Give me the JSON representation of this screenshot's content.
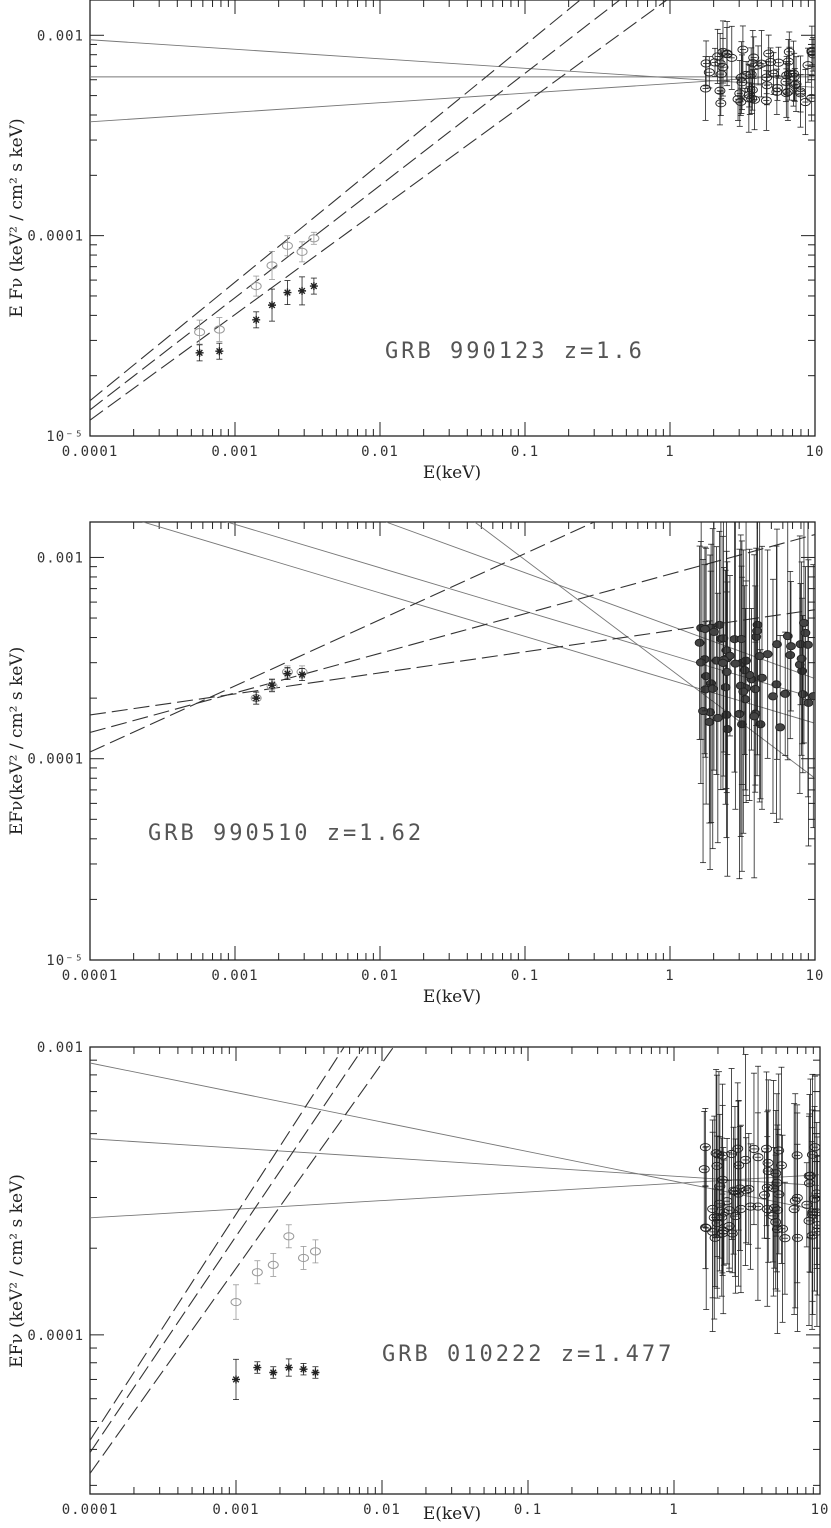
{
  "figure": {
    "panels": [
      {
        "annotation": "GRB 990123 z=1.6",
        "xlabel": "E(keV)",
        "ylabel": "E Fν (keV² / cm² s keV)"
      },
      {
        "annotation": "GRB 990510 z=1.62",
        "xlabel": "E(keV)",
        "ylabel": "EFν(keV² / cm² s keV)"
      },
      {
        "annotation": "GRB 010222 z=1.477",
        "xlabel": "E(keV)",
        "ylabel": "EFν (keV² / cm² s keV)"
      }
    ]
  },
  "chart_data": [
    {
      "type": "scatter",
      "title": "",
      "annotation": "GRB 990123 z=1.6",
      "xlabel": "E(keV)",
      "ylabel": "E Fν (keV² / cm² s keV)",
      "xscale": "log",
      "yscale": "log",
      "xlim": [
        0.0001,
        10
      ],
      "ylim": [
        1e-05,
        0.0015
      ],
      "xticks": [
        "0.0001",
        "0.001",
        "0.01",
        "0.1",
        "1",
        "10"
      ],
      "yticks": [
        {
          "v": 1e-05,
          "label": "10⁻⁵"
        },
        {
          "v": 0.0001,
          "label": "0.0001"
        },
        {
          "v": 0.001,
          "label": "0.001"
        }
      ],
      "series": [
        {
          "marker": "open-circle",
          "color": "#999999",
          "points": [
            [
              0.00057,
              3.3e-05
            ],
            [
              0.00078,
              3.4e-05
            ],
            [
              0.0014,
              5.6e-05
            ],
            [
              0.0018,
              7.1e-05
            ],
            [
              0.0023,
              8.9e-05
            ],
            [
              0.0029,
              8.3e-05
            ],
            [
              0.0035,
              9.7e-05
            ]
          ],
          "yerr": [
            0.06,
            0.06,
            0.05,
            0.07,
            0.05,
            0.05,
            0.03
          ]
        },
        {
          "marker": "star",
          "color": "#222222",
          "points": [
            [
              0.00057,
              2.6e-05
            ],
            [
              0.00078,
              2.65e-05
            ],
            [
              0.0014,
              3.8e-05
            ],
            [
              0.0018,
              4.5e-05
            ],
            [
              0.0023,
              5.2e-05
            ],
            [
              0.0029,
              5.3e-05
            ],
            [
              0.0035,
              5.6e-05
            ]
          ],
          "yerr": [
            0.04,
            0.04,
            0.04,
            0.08,
            0.06,
            0.07,
            0.04
          ]
        },
        {
          "marker": "open-circle-dot",
          "color": "#222222",
          "xrange": [
            1.6,
            9.8
          ],
          "yrange": [
            0.00045,
            0.00085
          ],
          "count": 60,
          "yerr_rel": 0.12,
          "seed": 7
        }
      ],
      "lines": [
        {
          "style": "solid",
          "color": "#777777",
          "from": [
            0.0001,
            0.00095
          ],
          "to": [
            10,
            0.00055
          ]
        },
        {
          "style": "solid",
          "color": "#777777",
          "from": [
            0.0001,
            0.00062
          ],
          "to": [
            10,
            0.00062
          ]
        },
        {
          "style": "solid",
          "color": "#777777",
          "from": [
            0.0001,
            0.00037
          ],
          "to": [
            10,
            0.00064
          ]
        },
        {
          "style": "dashed",
          "color": "#333333",
          "from": [
            0.0001,
            1.5e-05
          ],
          "to": [
            0.24,
            0.0015
          ]
        },
        {
          "style": "dashed",
          "color": "#333333",
          "from": [
            0.0001,
            1.35e-05
          ],
          "to": [
            0.45,
            0.0015
          ]
        },
        {
          "style": "dashed",
          "color": "#333333",
          "from": [
            0.0001,
            1.2e-05
          ],
          "to": [
            0.95,
            0.0015
          ]
        }
      ]
    },
    {
      "type": "scatter",
      "title": "",
      "annotation": "GRB 990510 z=1.62",
      "xlabel": "E(keV)",
      "ylabel": "EFν(keV² / cm² s keV)",
      "xscale": "log",
      "yscale": "log",
      "xlim": [
        0.0001,
        10
      ],
      "ylim": [
        1e-05,
        0.0015
      ],
      "xticks": [
        "0.0001",
        "0.001",
        "0.01",
        "0.1",
        "1",
        "10"
      ],
      "yticks": [
        {
          "v": 1e-05,
          "label": "10⁻⁵"
        },
        {
          "v": 0.0001,
          "label": "0.0001"
        },
        {
          "v": 0.001,
          "label": "0.001"
        }
      ],
      "series": [
        {
          "marker": "open-circle",
          "color": "#999999",
          "points": [
            [
              0.0014,
              0.0002
            ],
            [
              0.0018,
              0.00023
            ],
            [
              0.0023,
              0.00027
            ],
            [
              0.0029,
              0.00027
            ]
          ],
          "yerr": [
            0.03,
            0.03,
            0.03,
            0.03
          ]
        },
        {
          "marker": "star",
          "color": "#222222",
          "points": [
            [
              0.0014,
              0.0002
            ],
            [
              0.0018,
              0.000232
            ],
            [
              0.0023,
              0.000265
            ],
            [
              0.0029,
              0.000262
            ]
          ],
          "yerr": [
            0.03,
            0.03,
            0.03,
            0.03
          ]
        },
        {
          "marker": "filled-circle",
          "color": "#222222",
          "xrange": [
            1.6,
            9.8
          ],
          "yrange": [
            0.00014,
            0.00048
          ],
          "count": 70,
          "yerr_rel": 0.55,
          "seed": 19
        }
      ],
      "lines": [
        {
          "style": "solid",
          "color": "#777777",
          "from": [
            0.0001,
            0.0018
          ],
          "to": [
            10,
            0.00015
          ]
        },
        {
          "style": "solid",
          "color": "#777777",
          "from": [
            0.0001,
            0.0024
          ],
          "to": [
            10,
            0.0002
          ]
        },
        {
          "style": "solid",
          "color": "#777777",
          "from": [
            0.011,
            0.0015
          ],
          "to": [
            10,
            0.00025
          ]
        },
        {
          "style": "solid",
          "color": "#777777",
          "from": [
            0.045,
            0.0015
          ],
          "to": [
            10,
            8e-05
          ]
        },
        {
          "style": "dashed",
          "color": "#333333",
          "from": [
            0.0001,
            0.000165
          ],
          "to": [
            10,
            0.00055
          ]
        },
        {
          "style": "dashed",
          "color": "#333333",
          "from": [
            0.0001,
            0.000135
          ],
          "to": [
            10,
            0.0013
          ]
        },
        {
          "style": "dashed",
          "color": "#333333",
          "from": [
            0.0001,
            0.000108
          ],
          "to": [
            0.3,
            0.0015
          ]
        }
      ]
    },
    {
      "type": "scatter",
      "title": "",
      "annotation": "GRB 010222 z=1.477",
      "xlabel": "E(keV)",
      "ylabel": "EFν (keV² / cm² s keV)",
      "xscale": "log",
      "yscale": "log",
      "xlim": [
        0.0001,
        10
      ],
      "ylim": [
        2.8e-05,
        0.001
      ],
      "xticks": [
        "0.0001",
        "0.001",
        "0.01",
        "0.1",
        "1",
        "10"
      ],
      "yticks": [
        {
          "v": 0.0001,
          "label": "0.0001"
        },
        {
          "v": 0.001,
          "label": "0.001"
        }
      ],
      "series": [
        {
          "marker": "open-circle",
          "color": "#999999",
          "points": [
            [
              0.001,
              0.00013
            ],
            [
              0.0014,
              0.000165
            ],
            [
              0.0018,
              0.000175
            ],
            [
              0.0023,
              0.00022
            ],
            [
              0.0029,
              0.000185
            ],
            [
              0.0035,
              0.000195
            ]
          ],
          "yerr": [
            0.06,
            0.04,
            0.04,
            0.04,
            0.04,
            0.04
          ]
        },
        {
          "marker": "star",
          "color": "#222222",
          "points": [
            [
              0.001,
              7e-05
            ],
            [
              0.0014,
              7.7e-05
            ],
            [
              0.0018,
              7.4e-05
            ],
            [
              0.0023,
              7.7e-05
            ],
            [
              0.0029,
              7.6e-05
            ],
            [
              0.0035,
              7.4e-05
            ]
          ],
          "yerr": [
            0.07,
            0.02,
            0.02,
            0.03,
            0.02,
            0.02
          ]
        },
        {
          "marker": "open-circle-dot",
          "color": "#222222",
          "xrange": [
            1.6,
            9.8
          ],
          "yrange": [
            0.00021,
            0.00045
          ],
          "count": 80,
          "yerr_rel": 0.25,
          "seed": 31
        }
      ],
      "lines": [
        {
          "style": "solid",
          "color": "#777777",
          "from": [
            0.0001,
            0.00088
          ],
          "to": [
            10,
            0.00027
          ]
        },
        {
          "style": "solid",
          "color": "#777777",
          "from": [
            0.0001,
            0.00048
          ],
          "to": [
            10,
            0.00033
          ]
        },
        {
          "style": "solid",
          "color": "#777777",
          "from": [
            0.0001,
            0.000255
          ],
          "to": [
            10,
            0.00036
          ]
        },
        {
          "style": "dashed",
          "color": "#333333",
          "from": [
            0.0001,
            4.3e-05
          ],
          "to": [
            0.0055,
            0.001
          ]
        },
        {
          "style": "dashed",
          "color": "#333333",
          "from": [
            0.0001,
            3.9e-05
          ],
          "to": [
            0.0075,
            0.001
          ]
        },
        {
          "style": "dashed",
          "color": "#333333",
          "from": [
            0.0001,
            3.3e-05
          ],
          "to": [
            0.012,
            0.001
          ]
        }
      ]
    }
  ]
}
